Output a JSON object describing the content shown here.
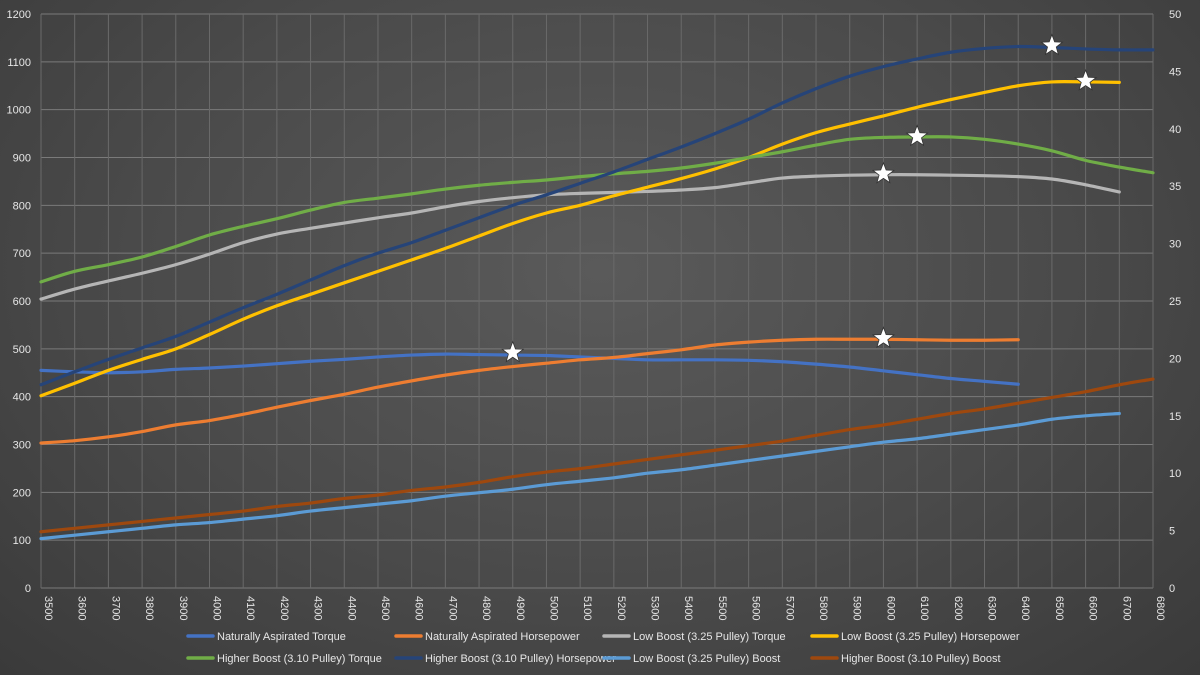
{
  "chart_data": {
    "type": "line",
    "title": "",
    "xlabel": "",
    "ylabel": "",
    "y2label": "",
    "grid": true,
    "legend_position": "bottom",
    "x": [
      3500,
      3600,
      3700,
      3800,
      3900,
      4000,
      4100,
      4200,
      4300,
      4400,
      4500,
      4600,
      4700,
      4800,
      4900,
      5000,
      5100,
      5200,
      5300,
      5400,
      5500,
      5600,
      5700,
      5800,
      5900,
      6000,
      6100,
      6200,
      6300,
      6400,
      6500,
      6600,
      6700,
      6800
    ],
    "x_ticks": [
      "3500",
      "3600",
      "3700",
      "3800",
      "3900",
      "4000",
      "4100",
      "4200",
      "4300",
      "4400",
      "4500",
      "4600",
      "4700",
      "4800",
      "4900",
      "5000",
      "5100",
      "5200",
      "5300",
      "5400",
      "5500",
      "5600",
      "5700",
      "5800",
      "5900",
      "6000",
      "6100",
      "6200",
      "6300",
      "6400",
      "6500",
      "6600",
      "6700",
      "6800"
    ],
    "ylim": [
      0,
      1200
    ],
    "y_ticks": [
      "0",
      "100",
      "200",
      "300",
      "400",
      "500",
      "600",
      "700",
      "800",
      "900",
      "1000",
      "1100",
      "1200"
    ],
    "y2lim": [
      0,
      50
    ],
    "y2_ticks": [
      "0",
      "5",
      "10",
      "15",
      "20",
      "25",
      "30",
      "35",
      "40",
      "45",
      "50"
    ],
    "series": [
      {
        "name": "Naturally Aspirated Torque",
        "color": "#4472c4",
        "axis": "left",
        "values": [
          455,
          452,
          450,
          452,
          457,
          460,
          464,
          469,
          474,
          478,
          483,
          487,
          489,
          488,
          487,
          486,
          483,
          480,
          477,
          477,
          477,
          476,
          473,
          468,
          462,
          454,
          446,
          438,
          432,
          426,
          null,
          null,
          null,
          null
        ],
        "peak_x": 4900,
        "peak_y": 492
      },
      {
        "name": "Naturally Aspirated Horsepower",
        "color": "#ed7d31",
        "axis": "left",
        "values": [
          303,
          308,
          316,
          327,
          341,
          350,
          363,
          378,
          392,
          405,
          420,
          433,
          445,
          455,
          463,
          470,
          477,
          482,
          490,
          498,
          508,
          514,
          518,
          520,
          520,
          520,
          519,
          518,
          518,
          519,
          null,
          null,
          null,
          null
        ],
        "peak_x": 6000,
        "peak_y": 522
      },
      {
        "name": "Low Boost (3.25 Pulley) Torque",
        "color": "#b5b5b5",
        "axis": "left",
        "values": [
          604,
          625,
          642,
          658,
          676,
          698,
          722,
          740,
          752,
          763,
          774,
          784,
          797,
          808,
          816,
          822,
          825,
          827,
          829,
          832,
          837,
          847,
          857,
          861,
          863,
          864,
          864,
          863,
          862,
          860,
          855,
          843,
          828,
          null
        ],
        "peak_x": 6000,
        "peak_y": 866
      },
      {
        "name": "Low Boost (3.25 Pulley) Horsepower",
        "color": "#ffc000",
        "axis": "left",
        "values": [
          402,
          428,
          455,
          478,
          500,
          530,
          562,
          590,
          614,
          638,
          662,
          686,
          710,
          736,
          762,
          784,
          800,
          820,
          838,
          856,
          876,
          900,
          928,
          952,
          970,
          987,
          1005,
          1021,
          1036,
          1050,
          1058,
          1058,
          1057,
          null
        ],
        "peak_x": 6600,
        "peak_y": 1060
      },
      {
        "name": "Higher Boost (3.10 Pulley) Torque",
        "color": "#70ad47",
        "axis": "left",
        "values": [
          640,
          662,
          676,
          692,
          714,
          738,
          756,
          772,
          790,
          806,
          815,
          824,
          834,
          842,
          848,
          853,
          860,
          866,
          871,
          878,
          888,
          900,
          912,
          926,
          938,
          942,
          943,
          943,
          938,
          928,
          914,
          894,
          880,
          868
        ],
        "peak_x": 6100,
        "peak_y": 944
      },
      {
        "name": "Higher Boost (3.10 Pulley) Horsepower",
        "color": "#264478",
        "axis": "left",
        "values": [
          425,
          452,
          478,
          502,
          526,
          556,
          586,
          614,
          644,
          674,
          700,
          722,
          748,
          774,
          800,
          822,
          846,
          870,
          896,
          922,
          950,
          980,
          1014,
          1044,
          1070,
          1090,
          1106,
          1120,
          1128,
          1132,
          1130,
          1127,
          1125,
          1125
        ],
        "peak_x": 6500,
        "peak_y": 1134
      },
      {
        "name": "Low Boost (3.25 Pulley) Boost",
        "color": "#5b9bd5",
        "axis": "right",
        "values": [
          4.3,
          4.6,
          4.9,
          5.2,
          5.5,
          5.7,
          6.0,
          6.3,
          6.7,
          7.0,
          7.3,
          7.6,
          8.0,
          8.3,
          8.6,
          9.0,
          9.3,
          9.6,
          10.0,
          10.3,
          10.7,
          11.1,
          11.5,
          11.9,
          12.3,
          12.7,
          13.0,
          13.4,
          13.8,
          14.2,
          14.7,
          15.0,
          15.2,
          null
        ],
        "peak_x": null,
        "peak_y": null
      },
      {
        "name": "Higher Boost (3.10 Pulley) Boost",
        "color": "#9e480e",
        "axis": "right",
        "values": [
          4.9,
          5.2,
          5.5,
          5.8,
          6.1,
          6.4,
          6.7,
          7.1,
          7.4,
          7.8,
          8.1,
          8.5,
          8.8,
          9.2,
          9.7,
          10.1,
          10.4,
          10.8,
          11.2,
          11.6,
          12.0,
          12.4,
          12.8,
          13.3,
          13.8,
          14.2,
          14.7,
          15.2,
          15.6,
          16.1,
          16.6,
          17.1,
          17.7,
          18.2
        ],
        "peak_x": null,
        "peak_y": null
      }
    ]
  }
}
